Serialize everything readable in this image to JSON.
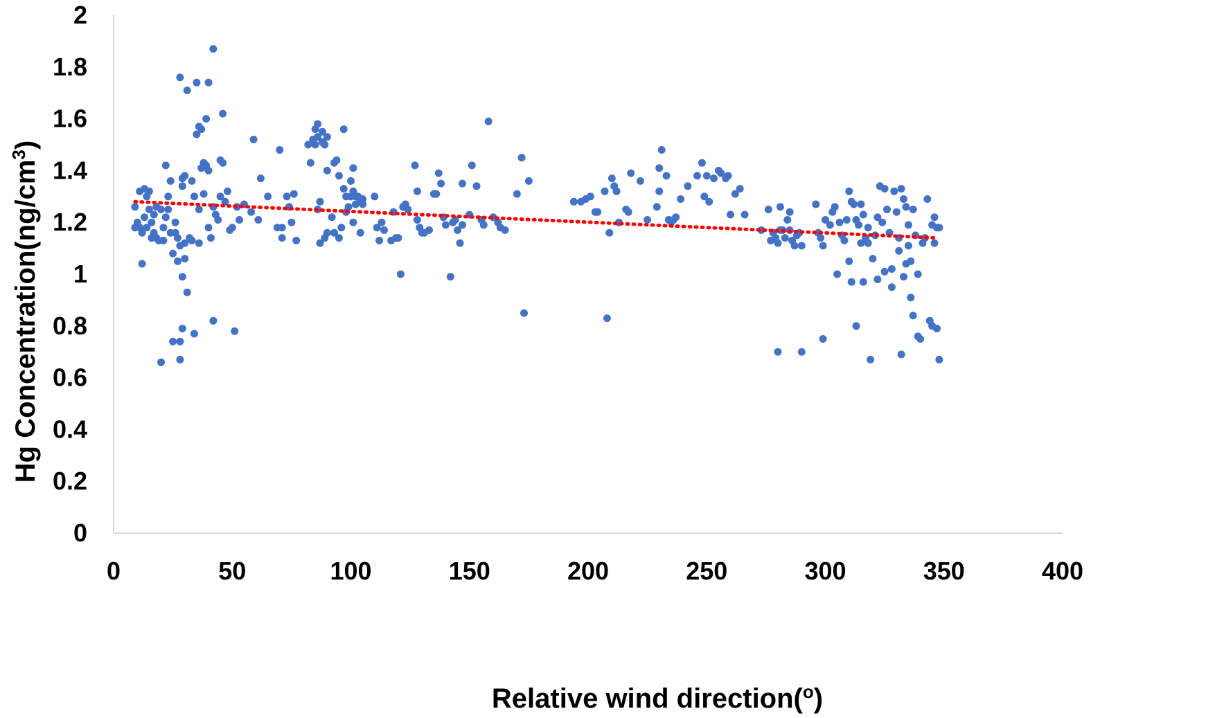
{
  "chart_data": {
    "type": "scatter",
    "title": "",
    "xlabel": "Relative wind direction(",
    "xlabel_sup": "o",
    "xlabel_end": ")",
    "ylabel": "Hg Concentration(ng/cm",
    "ylabel_sup": "3",
    "ylabel_end": ")",
    "xlim": [
      0,
      400
    ],
    "ylim": [
      0,
      2
    ],
    "x_ticks": [
      "0",
      "50",
      "100",
      "150",
      "200",
      "250",
      "300",
      "350",
      "400"
    ],
    "y_ticks": [
      "0",
      "0.2",
      "0.4",
      "0.6",
      "0.8",
      "1",
      "1.2",
      "1.4",
      "1.6",
      "1.8",
      "2"
    ],
    "grid": false,
    "legend": "none",
    "colors": {
      "points": "#4472c4",
      "trendline": "#ff0000",
      "axis": "#d9d9d9"
    },
    "trendline": {
      "type": "linear",
      "style": "dotted",
      "x": [
        9,
        347
      ],
      "y": [
        1.28,
        1.14
      ]
    },
    "series": [
      {
        "points": [
          [
            9,
            1.18
          ],
          [
            9,
            1.26
          ],
          [
            10,
            1.2
          ],
          [
            11,
            1.32
          ],
          [
            11,
            1.18
          ],
          [
            12,
            1.16
          ],
          [
            12,
            1.04
          ],
          [
            13,
            1.33
          ],
          [
            13,
            1.22
          ],
          [
            14,
            1.18
          ],
          [
            14,
            1.3
          ],
          [
            15,
            1.32
          ],
          [
            15,
            1.25
          ],
          [
            16,
            1.14
          ],
          [
            16,
            1.2
          ],
          [
            17,
            1.23
          ],
          [
            17,
            1.16
          ],
          [
            18,
            1.26
          ],
          [
            18,
            1.14
          ],
          [
            19,
            1.13
          ],
          [
            20,
            1.25
          ],
          [
            20,
            0.66
          ],
          [
            21,
            1.13
          ],
          [
            21,
            1.18
          ],
          [
            22,
            1.42
          ],
          [
            22,
            1.22
          ],
          [
            23,
            1.25
          ],
          [
            23,
            1.3
          ],
          [
            24,
            1.36
          ],
          [
            24,
            1.16
          ],
          [
            25,
            1.08
          ],
          [
            25,
            0.74
          ],
          [
            26,
            1.2
          ],
          [
            26,
            1.16
          ],
          [
            27,
            1.14
          ],
          [
            27,
            1.05
          ],
          [
            28,
            1.76
          ],
          [
            28,
            1.11
          ],
          [
            28,
            0.67
          ],
          [
            28,
            0.74
          ],
          [
            29,
            1.37
          ],
          [
            29,
            1.34
          ],
          [
            29,
            0.99
          ],
          [
            29,
            0.79
          ],
          [
            30,
            1.38
          ],
          [
            30,
            1.12
          ],
          [
            30,
            1.06
          ],
          [
            31,
            1.71
          ],
          [
            31,
            0.93
          ],
          [
            32,
            1.14
          ],
          [
            33,
            1.36
          ],
          [
            33,
            1.13
          ],
          [
            34,
            1.3
          ],
          [
            34,
            0.77
          ],
          [
            35,
            1.74
          ],
          [
            35,
            1.54
          ],
          [
            36,
            1.57
          ],
          [
            36,
            1.25
          ],
          [
            36,
            1.12
          ],
          [
            37,
            1.56
          ],
          [
            37,
            1.41
          ],
          [
            38,
            1.43
          ],
          [
            38,
            1.31
          ],
          [
            39,
            1.6
          ],
          [
            39,
            1.42
          ],
          [
            40,
            1.74
          ],
          [
            40,
            1.4
          ],
          [
            40,
            1.18
          ],
          [
            41,
            1.14
          ],
          [
            42,
            1.87
          ],
          [
            42,
            1.26
          ],
          [
            42,
            0.82
          ],
          [
            43,
            1.23
          ],
          [
            44,
            1.21
          ],
          [
            45,
            1.44
          ],
          [
            45,
            1.3
          ],
          [
            46,
            1.43
          ],
          [
            46,
            1.62
          ],
          [
            47,
            1.28
          ],
          [
            48,
            1.32
          ],
          [
            49,
            1.17
          ],
          [
            50,
            1.18
          ],
          [
            51,
            0.78
          ],
          [
            52,
            1.26
          ],
          [
            53,
            1.21
          ],
          [
            55,
            1.27
          ],
          [
            58,
            1.24
          ],
          [
            59,
            1.52
          ],
          [
            61,
            1.21
          ],
          [
            62,
            1.37
          ],
          [
            65,
            1.3
          ],
          [
            69,
            1.18
          ],
          [
            70,
            1.48
          ],
          [
            71,
            1.14
          ],
          [
            71,
            1.18
          ],
          [
            73,
            1.3
          ],
          [
            74,
            1.26
          ],
          [
            75,
            1.2
          ],
          [
            76,
            1.31
          ],
          [
            77,
            1.13
          ],
          [
            82,
            1.5
          ],
          [
            83,
            1.43
          ],
          [
            84,
            1.52
          ],
          [
            85,
            1.56
          ],
          [
            85,
            1.5
          ],
          [
            86,
            1.58
          ],
          [
            86,
            1.53
          ],
          [
            86,
            1.25
          ],
          [
            87,
            1.12
          ],
          [
            87,
            1.28
          ],
          [
            88,
            1.51
          ],
          [
            88,
            1.55
          ],
          [
            89,
            1.5
          ],
          [
            89,
            1.14
          ],
          [
            90,
            1.53
          ],
          [
            90,
            1.4
          ],
          [
            90,
            1.16
          ],
          [
            92,
            1.22
          ],
          [
            93,
            1.16
          ],
          [
            93,
            1.43
          ],
          [
            94,
            1.44
          ],
          [
            95,
            1.38
          ],
          [
            95,
            1.14
          ],
          [
            96,
            1.18
          ],
          [
            97,
            1.56
          ],
          [
            97,
            1.33
          ],
          [
            98,
            1.24
          ],
          [
            98,
            1.3
          ],
          [
            99,
            1.26
          ],
          [
            100,
            1.36
          ],
          [
            100,
            1.3
          ],
          [
            101,
            1.41
          ],
          [
            101,
            1.2
          ],
          [
            101,
            1.32
          ],
          [
            102,
            1.3
          ],
          [
            102,
            1.27
          ],
          [
            103,
            1.3
          ],
          [
            104,
            1.28
          ],
          [
            104,
            1.16
          ],
          [
            105,
            1.29
          ],
          [
            105,
            1.27
          ],
          [
            110,
            1.3
          ],
          [
            111,
            1.18
          ],
          [
            112,
            1.13
          ],
          [
            113,
            1.2
          ],
          [
            114,
            1.17
          ],
          [
            117,
            1.13
          ],
          [
            118,
            1.24
          ],
          [
            119,
            1.14
          ],
          [
            120,
            1.14
          ],
          [
            121,
            1.0
          ],
          [
            122,
            1.26
          ],
          [
            123,
            1.27
          ],
          [
            124,
            1.25
          ],
          [
            127,
            1.42
          ],
          [
            128,
            1.32
          ],
          [
            128,
            1.21
          ],
          [
            129,
            1.18
          ],
          [
            130,
            1.16
          ],
          [
            131,
            1.16
          ],
          [
            133,
            1.17
          ],
          [
            135,
            1.31
          ],
          [
            136,
            1.31
          ],
          [
            137,
            1.39
          ],
          [
            138,
            1.35
          ],
          [
            139,
            1.22
          ],
          [
            140,
            1.19
          ],
          [
            142,
            0.99
          ],
          [
            143,
            1.2
          ],
          [
            144,
            1.21
          ],
          [
            145,
            1.17
          ],
          [
            146,
            1.12
          ],
          [
            147,
            1.19
          ],
          [
            147,
            1.35
          ],
          [
            150,
            1.23
          ],
          [
            151,
            1.42
          ],
          [
            153,
            1.34
          ],
          [
            155,
            1.21
          ],
          [
            156,
            1.19
          ],
          [
            158,
            1.59
          ],
          [
            160,
            1.22
          ],
          [
            162,
            1.2
          ],
          [
            163,
            1.18
          ],
          [
            165,
            1.17
          ],
          [
            170,
            1.31
          ],
          [
            172,
            1.45
          ],
          [
            173,
            0.85
          ],
          [
            175,
            1.36
          ],
          [
            194,
            1.28
          ],
          [
            197,
            1.28
          ],
          [
            199,
            1.29
          ],
          [
            201,
            1.3
          ],
          [
            203,
            1.24
          ],
          [
            204,
            1.24
          ],
          [
            207,
            1.32
          ],
          [
            208,
            0.83
          ],
          [
            209,
            1.16
          ],
          [
            210,
            1.37
          ],
          [
            211,
            1.34
          ],
          [
            212,
            1.32
          ],
          [
            213,
            1.2
          ],
          [
            216,
            1.25
          ],
          [
            217,
            1.24
          ],
          [
            218,
            1.39
          ],
          [
            222,
            1.36
          ],
          [
            225,
            1.21
          ],
          [
            229,
            1.26
          ],
          [
            230,
            1.32
          ],
          [
            230,
            1.41
          ],
          [
            231,
            1.48
          ],
          [
            233,
            1.38
          ],
          [
            234,
            1.21
          ],
          [
            235,
            1.2
          ],
          [
            236,
            1.21
          ],
          [
            237,
            1.22
          ],
          [
            239,
            1.29
          ],
          [
            242,
            1.34
          ],
          [
            246,
            1.38
          ],
          [
            248,
            1.43
          ],
          [
            249,
            1.3
          ],
          [
            250,
            1.38
          ],
          [
            251,
            1.28
          ],
          [
            253,
            1.37
          ],
          [
            255,
            1.4
          ],
          [
            256,
            1.39
          ],
          [
            258,
            1.37
          ],
          [
            259,
            1.38
          ],
          [
            260,
            1.23
          ],
          [
            262,
            1.31
          ],
          [
            264,
            1.33
          ],
          [
            266,
            1.23
          ],
          [
            273,
            1.17
          ],
          [
            276,
            1.25
          ],
          [
            277,
            1.13
          ],
          [
            278,
            1.16
          ],
          [
            279,
            1.14
          ],
          [
            280,
            1.12
          ],
          [
            280,
            0.7
          ],
          [
            281,
            1.26
          ],
          [
            281,
            1.17
          ],
          [
            282,
            1.17
          ],
          [
            283,
            1.14
          ],
          [
            284,
            1.21
          ],
          [
            285,
            1.24
          ],
          [
            285,
            1.17
          ],
          [
            286,
            1.13
          ],
          [
            287,
            1.11
          ],
          [
            288,
            1.15
          ],
          [
            289,
            1.16
          ],
          [
            290,
            1.11
          ],
          [
            290,
            0.7
          ],
          [
            296,
            1.27
          ],
          [
            297,
            1.16
          ],
          [
            298,
            1.14
          ],
          [
            299,
            1.11
          ],
          [
            299,
            0.75
          ],
          [
            300,
            1.21
          ],
          [
            302,
            1.19
          ],
          [
            303,
            1.24
          ],
          [
            304,
            1.26
          ],
          [
            305,
            1.0
          ],
          [
            306,
            1.2
          ],
          [
            307,
            1.15
          ],
          [
            308,
            1.13
          ],
          [
            309,
            1.21
          ],
          [
            310,
            1.32
          ],
          [
            310,
            1.05
          ],
          [
            311,
            0.97
          ],
          [
            311,
            1.28
          ],
          [
            312,
            1.27
          ],
          [
            313,
            1.21
          ],
          [
            313,
            0.8
          ],
          [
            314,
            1.19
          ],
          [
            315,
            1.27
          ],
          [
            315,
            1.12
          ],
          [
            316,
            1.23
          ],
          [
            316,
            0.97
          ],
          [
            317,
            1.14
          ],
          [
            318,
            1.18
          ],
          [
            318,
            1.12
          ],
          [
            319,
            0.67
          ],
          [
            320,
            1.06
          ],
          [
            321,
            1.15
          ],
          [
            322,
            0.98
          ],
          [
            322,
            1.22
          ],
          [
            323,
            1.34
          ],
          [
            324,
            1.2
          ],
          [
            325,
            1.33
          ],
          [
            325,
            1.01
          ],
          [
            326,
            1.25
          ],
          [
            327,
            1.16
          ],
          [
            328,
            1.02
          ],
          [
            328,
            0.95
          ],
          [
            329,
            1.32
          ],
          [
            330,
            1.24
          ],
          [
            331,
            1.14
          ],
          [
            331,
            1.09
          ],
          [
            332,
            1.33
          ],
          [
            332,
            0.69
          ],
          [
            333,
            1.29
          ],
          [
            333,
            0.99
          ],
          [
            334,
            1.26
          ],
          [
            334,
            1.04
          ],
          [
            335,
            1.11
          ],
          [
            335,
            1.19
          ],
          [
            336,
            1.05
          ],
          [
            336,
            0.91
          ],
          [
            337,
            1.25
          ],
          [
            337,
            0.84
          ],
          [
            338,
            1.15
          ],
          [
            339,
            1.0
          ],
          [
            339,
            0.76
          ],
          [
            340,
            0.75
          ],
          [
            341,
            1.12
          ],
          [
            342,
            1.14
          ],
          [
            343,
            1.29
          ],
          [
            344,
            0.82
          ],
          [
            345,
            0.8
          ],
          [
            345,
            1.19
          ],
          [
            346,
            1.12
          ],
          [
            346,
            1.22
          ],
          [
            347,
            0.79
          ],
          [
            347,
            1.18
          ],
          [
            348,
            0.67
          ],
          [
            348,
            1.18
          ]
        ]
      }
    ]
  }
}
